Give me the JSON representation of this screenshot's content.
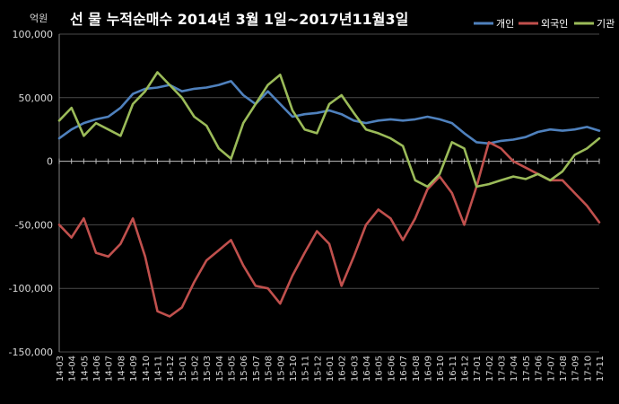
{
  "chart_data": {
    "type": "line",
    "title": "선 물 누적순매수 2014년 3월 1일~2017년11월3일",
    "unit_label": "억원",
    "ylim": [
      -150000,
      100000
    ],
    "yticks": [
      {
        "value": 100000,
        "label": "100,000"
      },
      {
        "value": 50000,
        "label": "50,000"
      },
      {
        "value": 0,
        "label": "0"
      },
      {
        "value": -50000,
        "label": "-50,000"
      },
      {
        "value": -100000,
        "label": "-100,000"
      },
      {
        "value": -150000,
        "label": "-150,000"
      }
    ],
    "categories": [
      "14-03",
      "14-04",
      "14-05",
      "14-06",
      "14-07",
      "14-08",
      "14-09",
      "14-10",
      "14-11",
      "14-12",
      "15-01",
      "15-02",
      "15-03",
      "15-04",
      "15-05",
      "15-06",
      "15-07",
      "15-08",
      "15-09",
      "15-10",
      "15-11",
      "15-12",
      "16-01",
      "16-02",
      "16-03",
      "16-04",
      "16-05",
      "16-06",
      "16-07",
      "16-08",
      "16-09",
      "16-10",
      "16-11",
      "16-12",
      "17-01",
      "17-02",
      "17-03",
      "17-04",
      "17-05",
      "17-06",
      "17-07",
      "17-08",
      "17-09",
      "17-10",
      "17-11"
    ],
    "grid": true,
    "legend_position": "top-right",
    "series": [
      {
        "name": "개인",
        "color": "#4f81bd",
        "values": [
          18000,
          25000,
          30000,
          33000,
          35000,
          42000,
          53000,
          57000,
          58000,
          60000,
          55000,
          57000,
          58000,
          60000,
          63000,
          52000,
          45000,
          55000,
          45000,
          35000,
          37000,
          38000,
          40000,
          37000,
          32000,
          30000,
          32000,
          33000,
          32000,
          33000,
          35000,
          33000,
          30000,
          22000,
          15000,
          14000,
          16000,
          17000,
          19000,
          23000,
          25000,
          24000,
          25000,
          27000,
          24000
        ]
      },
      {
        "name": "외국인",
        "color": "#c0504d",
        "values": [
          -50000,
          -60000,
          -45000,
          -72000,
          -75000,
          -65000,
          -45000,
          -75000,
          -118000,
          -122000,
          -115000,
          -95000,
          -78000,
          -70000,
          -62000,
          -82000,
          -98000,
          -100000,
          -112000,
          -90000,
          -72000,
          -55000,
          -65000,
          -98000,
          -75000,
          -50000,
          -38000,
          -45000,
          -62000,
          -45000,
          -22000,
          -12000,
          -25000,
          -50000,
          -20000,
          15000,
          10000,
          0,
          -5000,
          -10000,
          -15000,
          -15000,
          -25000,
          -35000,
          -48000
        ]
      },
      {
        "name": "기관",
        "color": "#9bbb59",
        "values": [
          32000,
          42000,
          20000,
          30000,
          25000,
          20000,
          45000,
          55000,
          70000,
          60000,
          50000,
          35000,
          28000,
          10000,
          2000,
          30000,
          45000,
          60000,
          68000,
          40000,
          25000,
          22000,
          45000,
          52000,
          38000,
          25000,
          22000,
          18000,
          12000,
          -15000,
          -20000,
          -10000,
          15000,
          10000,
          -20000,
          -18000,
          -15000,
          -12000,
          -14000,
          -10000,
          -15000,
          -8000,
          5000,
          10000,
          18000
        ]
      }
    ]
  }
}
